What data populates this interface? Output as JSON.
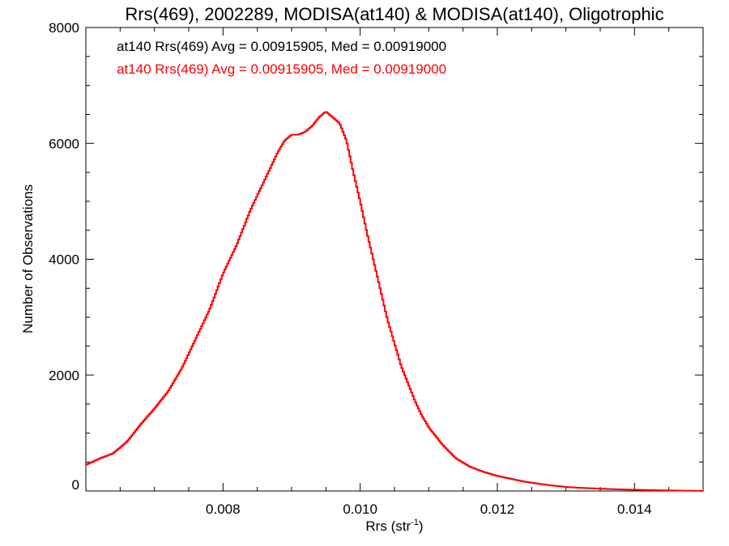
{
  "chart_data": {
    "type": "line",
    "title": "Rrs(469), 2002289, MODISA(at140) & MODISA(at140), Oligotrophic",
    "xlabel": "Rrs (str",
    "xlabel_sup": "-1",
    "xlabel_close": ")",
    "ylabel": "Number of Observations",
    "xlim": [
      0.006,
      0.015
    ],
    "ylim": [
      0,
      8000
    ],
    "x_ticks": [
      0.008,
      0.01,
      0.012,
      0.014
    ],
    "x_tick_labels": [
      "0.008",
      "0.010",
      "0.012",
      "0.014"
    ],
    "y_ticks": [
      0,
      2000,
      4000,
      6000,
      8000
    ],
    "y_tick_labels": [
      "0",
      "2000",
      "4000",
      "6000",
      "8000"
    ],
    "grid": false,
    "annotations": [
      {
        "text": "at140 Rrs(469) Avg = 0.00915905, Med = 0.00919000",
        "color": "#000000"
      },
      {
        "text": "at140 Rrs(469) Avg = 0.00915905, Med = 0.00919000",
        "color": "#ff0000"
      }
    ],
    "series": [
      {
        "color": "#ff0000",
        "x": [
          0.006,
          0.0062,
          0.0064,
          0.0066,
          0.0068,
          0.007,
          0.0072,
          0.0074,
          0.0076,
          0.0078,
          0.008,
          0.0082,
          0.0084,
          0.0086,
          0.0088,
          0.0089,
          0.009,
          0.0091,
          0.0092,
          0.0093,
          0.0094,
          0.0095,
          0.0096,
          0.0097,
          0.0098,
          0.0099,
          0.01,
          0.0101,
          0.0102,
          0.0103,
          0.0104,
          0.0105,
          0.0106,
          0.0107,
          0.0108,
          0.0109,
          0.011,
          0.0111,
          0.0112,
          0.0113,
          0.0114,
          0.0116,
          0.0118,
          0.012,
          0.0122,
          0.0124,
          0.0126,
          0.0128,
          0.013,
          0.0132,
          0.0134,
          0.0136,
          0.0138,
          0.014,
          0.0142,
          0.0144,
          0.0146,
          0.0148,
          0.015
        ],
        "y": [
          450,
          560,
          650,
          850,
          1150,
          1420,
          1720,
          2120,
          2620,
          3120,
          3750,
          4250,
          4850,
          5350,
          5850,
          6050,
          6150,
          6150,
          6200,
          6300,
          6450,
          6550,
          6450,
          6350,
          6050,
          5500,
          5000,
          4450,
          3950,
          3450,
          2950,
          2550,
          2150,
          1850,
          1550,
          1300,
          1100,
          950,
          800,
          680,
          560,
          420,
          330,
          260,
          210,
          160,
          125,
          95,
          70,
          55,
          45,
          35,
          28,
          22,
          16,
          12,
          8,
          5,
          2
        ]
      }
    ]
  }
}
